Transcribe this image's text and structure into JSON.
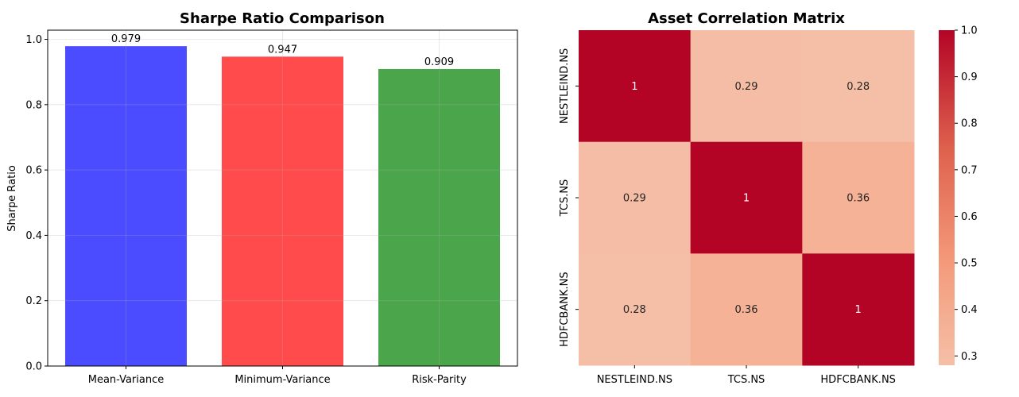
{
  "chart_data": [
    {
      "type": "bar",
      "title": "Sharpe Ratio Comparison",
      "xlabel": "",
      "ylabel": "Sharpe Ratio",
      "categories": [
        "Mean-Variance",
        "Minimum-Variance",
        "Risk-Parity"
      ],
      "values": [
        0.979,
        0.947,
        0.909
      ],
      "data_labels": [
        "0.979",
        "0.947",
        "0.909"
      ],
      "colors": [
        "#4b4bff",
        "#ff4b4b",
        "#4ba64b"
      ],
      "ylim": [
        0,
        1.028
      ],
      "yticks": [
        "0.0",
        "0.2",
        "0.4",
        "0.6",
        "0.8",
        "1.0"
      ],
      "ytick_values": [
        0,
        0.2,
        0.4,
        0.6,
        0.8,
        1.0
      ],
      "grid": true
    },
    {
      "type": "heatmap",
      "title": "Asset Correlation Matrix",
      "x_labels": [
        "NESTLEIND.NS",
        "TCS.NS",
        "HDFCBANK.NS"
      ],
      "y_labels": [
        "NESTLEIND.NS",
        "TCS.NS",
        "HDFCBANK.NS"
      ],
      "values": [
        [
          1,
          0.29,
          0.28
        ],
        [
          0.29,
          1,
          0.36
        ],
        [
          0.28,
          0.36,
          1
        ]
      ],
      "cell_labels": [
        [
          "1",
          "0.29",
          "0.28"
        ],
        [
          "0.29",
          "1",
          "0.36"
        ],
        [
          "0.28",
          "0.36",
          "1"
        ]
      ],
      "colormap": "coolwarm",
      "colorbar_range": [
        0.28,
        1.0
      ],
      "colorbar_ticks": [
        "0.3",
        "0.4",
        "0.5",
        "0.6",
        "0.7",
        "0.8",
        "0.9",
        "1.0"
      ],
      "colorbar_tick_values": [
        0.3,
        0.4,
        0.5,
        0.6,
        0.7,
        0.8,
        0.9,
        1.0
      ]
    }
  ]
}
